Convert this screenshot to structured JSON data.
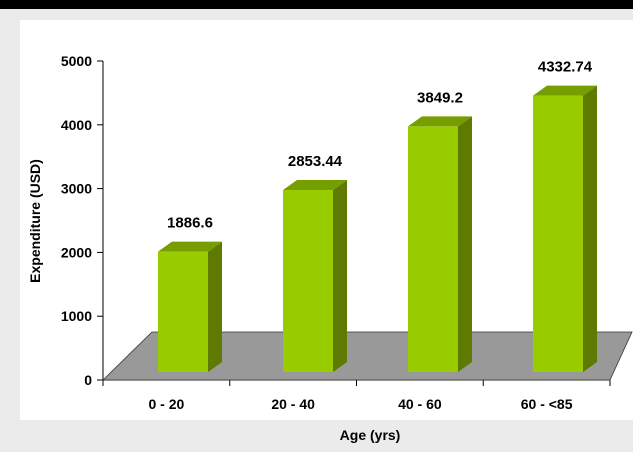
{
  "chart_data": {
    "type": "bar",
    "categories": [
      "0 - 20",
      "20 - 40",
      "40 - 60",
      "60 - <85"
    ],
    "values": [
      1886.6,
      2853.44,
      3849.2,
      4332.74
    ],
    "data_labels": [
      "1886.6",
      "2853.44",
      "3849.2",
      "4332.74"
    ],
    "xlabel": "Age (yrs)",
    "ylabel": "Expenditure (USD)",
    "ylim": [
      0,
      5000
    ],
    "yticks": [
      "0",
      "1000",
      "2000",
      "3000",
      "4000",
      "5000"
    ],
    "grid": false,
    "legend": "none",
    "style": "3d-column",
    "colors": {
      "bar_front": "#99CC00",
      "bar_side": "#5E7A00",
      "bar_top": "#779E00",
      "floor": "#999999",
      "plot_background": "#FFFFFF",
      "frame_background": "#EBEBEB",
      "top_band": "#000000"
    }
  }
}
